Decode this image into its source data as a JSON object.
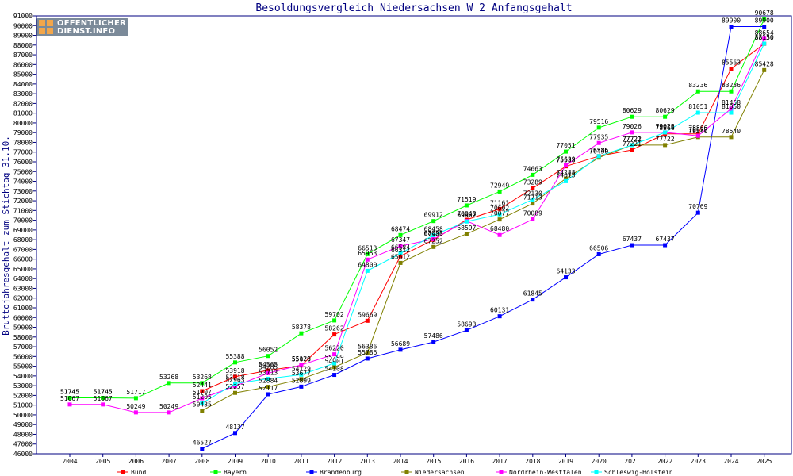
{
  "chart_data": {
    "type": "line",
    "title": "Besoldungsvergleich Niedersachsen W 2 Anfangsgehalt",
    "ylabel": "Bruttojahresgehalt zum Stichtag 31.10.",
    "xlabel": "",
    "ylim": [
      46000,
      91000
    ],
    "ytick_step": 1000,
    "x": [
      "2004",
      "2005",
      "2006",
      "2007",
      "2008",
      "2009",
      "2010",
      "2011",
      "2012",
      "2013",
      "2014",
      "2015",
      "2016",
      "2017",
      "2018",
      "2019",
      "2020",
      "2021",
      "2022",
      "2023",
      "2024",
      "2025"
    ],
    "grid": false,
    "legend_position": "bottom",
    "series": [
      {
        "name": "Bund",
        "color": "#ff0000",
        "values": [
          51745,
          51745,
          null,
          null,
          52441,
          53918,
          54565,
          55076,
          58262,
          59669,
          66312,
          67983,
          70048,
          71161,
          73289,
          75538,
          76586,
          77221,
          78866,
          78866,
          85563,
          88130
        ]
      },
      {
        "name": "Bayern",
        "color": "#00ff00",
        "values": [
          51745,
          51745,
          51717,
          53268,
          53268,
          55388,
          56052,
          58378,
          59702,
          66513,
          68474,
          69912,
          71519,
          72949,
          74663,
          77051,
          79516,
          80629,
          80629,
          83236,
          83236,
          90678
        ]
      },
      {
        "name": "Brandenburg",
        "color": "#0000ff",
        "values": [
          null,
          null,
          null,
          null,
          46527,
          48137,
          52117,
          52899,
          54108,
          55786,
          56689,
          57486,
          58693,
          60131,
          61845,
          64133,
          66506,
          67437,
          67437,
          70769,
          89900,
          89900
        ]
      },
      {
        "name": "Niedersachsen",
        "color": "#808000",
        "values": [
          null,
          null,
          null,
          null,
          50435,
          52257,
          52884,
          53677,
          54901,
          56386,
          65612,
          67252,
          68597,
          70077,
          71713,
          74288,
          76430,
          77722,
          77722,
          78540,
          78540,
          85428
        ]
      },
      {
        "name": "Nordrhein-Westfalen",
        "color": "#ff00ff",
        "values": [
          51067,
          51067,
          50249,
          50249,
          51707,
          52963,
          54285,
          55129,
          56220,
          65953,
          67347,
          68058,
          69927,
          68480,
          70089,
          75639,
          77935,
          79026,
          79026,
          78677,
          81458,
          88654
        ]
      },
      {
        "name": "Schleswig-Holstein",
        "color": "#00ffff",
        "values": [
          null,
          null,
          null,
          null,
          51205,
          53218,
          53713,
          54129,
          55299,
          64800,
          66584,
          68458,
          69867,
          70602,
          72130,
          74013,
          76586,
          77721,
          79022,
          81051,
          81050,
          88150
        ]
      }
    ]
  },
  "logo": {
    "line1": "OFFENTLICHER",
    "line2": "DIENST.INFO"
  }
}
